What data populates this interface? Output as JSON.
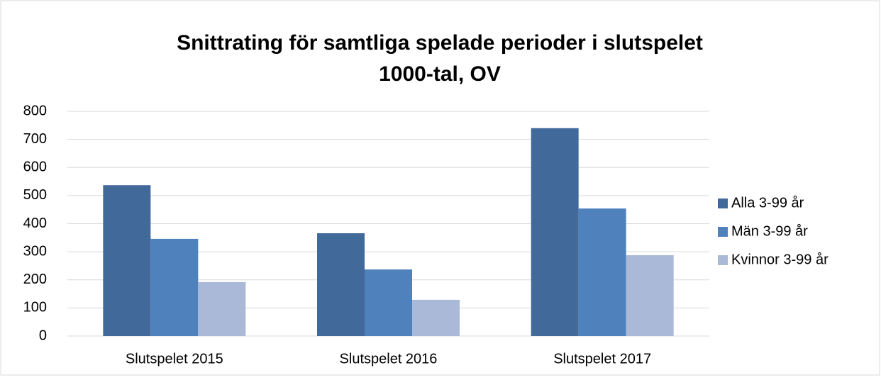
{
  "chart_data": {
    "type": "bar",
    "title": "Snittrating för samtliga spelade perioder i slutspelet",
    "subtitle": "1000-tal, OV",
    "categories": [
      "Slutspelet 2015",
      "Slutspelet 2016",
      "Slutspelet 2017"
    ],
    "series": [
      {
        "name": "Alla 3-99 år",
        "color": "#41699a",
        "values": [
          537,
          366,
          740
        ]
      },
      {
        "name": "Män 3-99 år",
        "color": "#4f81bd",
        "values": [
          346,
          237,
          454
        ]
      },
      {
        "name": "Kvinnor 3-99 år",
        "color": "#aab9d8",
        "values": [
          192,
          129,
          288
        ]
      }
    ],
    "ylim": [
      0,
      800
    ],
    "yticks": [
      0,
      100,
      200,
      300,
      400,
      500,
      600,
      700,
      800
    ],
    "grid": true,
    "legend": "right"
  }
}
